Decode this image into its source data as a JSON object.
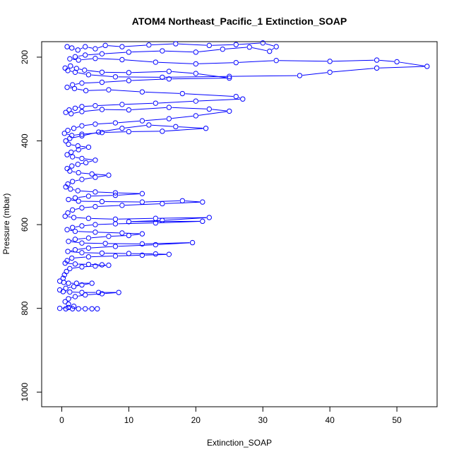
{
  "chart_data": {
    "type": "scatter",
    "title": "ATOM4 Northeast_Pacific_1 Extinction_SOAP",
    "xlabel": "Extinction_SOAP",
    "ylabel": "Pressure (mbar)",
    "xlim": [
      -3,
      56
    ],
    "ylim": [
      1035,
      163
    ],
    "y_reversed": true,
    "x_ticks": [
      0,
      10,
      20,
      30,
      40,
      50
    ],
    "x_tick_labels": [
      "0",
      "10",
      "20",
      "30",
      "40",
      "50"
    ],
    "y_ticks": [
      200,
      400,
      600,
      800,
      1000
    ],
    "y_tick_labels": [
      "200",
      "400",
      "600",
      "800",
      "1000"
    ],
    "grid": false,
    "legend": "none",
    "marker": "open-circle",
    "connected": true,
    "color": "#0000ff",
    "series": [
      {
        "points": [
          [
            0.8,
            175
          ],
          [
            1.5,
            178
          ],
          [
            2.4,
            183
          ],
          [
            3.5,
            175
          ],
          [
            5.0,
            180
          ],
          [
            6.5,
            172
          ],
          [
            9.0,
            175
          ],
          [
            13.0,
            171
          ],
          [
            17.0,
            168
          ],
          [
            22.0,
            172
          ],
          [
            26.0,
            170
          ],
          [
            30.0,
            166
          ],
          [
            32.0,
            175
          ],
          [
            31.0,
            186
          ],
          [
            28.0,
            176
          ],
          [
            24.0,
            181
          ],
          [
            20.0,
            188
          ],
          [
            15.0,
            185
          ],
          [
            10.0,
            188
          ],
          [
            6.0,
            192
          ],
          [
            3.5,
            195
          ],
          [
            2.0,
            199
          ],
          [
            1.2,
            204
          ],
          [
            2.5,
            207
          ],
          [
            5.0,
            203
          ],
          [
            9.0,
            206
          ],
          [
            14.0,
            212
          ],
          [
            20.0,
            216
          ],
          [
            26.0,
            213
          ],
          [
            32.0,
            208
          ],
          [
            40.0,
            210
          ],
          [
            47.0,
            207
          ],
          [
            50.0,
            211
          ],
          [
            54.5,
            222
          ],
          [
            47.0,
            226
          ],
          [
            40.0,
            236
          ],
          [
            35.5,
            244
          ],
          [
            25.0,
            246
          ],
          [
            15.0,
            248
          ],
          [
            8.0,
            247
          ],
          [
            4.0,
            242
          ],
          [
            2.0,
            236
          ],
          [
            0.9,
            232
          ],
          [
            0.5,
            226
          ],
          [
            1.3,
            221
          ],
          [
            2.2,
            227
          ],
          [
            3.4,
            231
          ],
          [
            6.0,
            236
          ],
          [
            10.0,
            237
          ],
          [
            16.0,
            234
          ],
          [
            20.0,
            239
          ],
          [
            25.0,
            250
          ],
          [
            16.0,
            252
          ],
          [
            10.0,
            256
          ],
          [
            6.0,
            260
          ],
          [
            3.0,
            262
          ],
          [
            1.6,
            266
          ],
          [
            0.8,
            272
          ],
          [
            1.9,
            275
          ],
          [
            3.6,
            280
          ],
          [
            7.0,
            278
          ],
          [
            12.0,
            283
          ],
          [
            18.0,
            287
          ],
          [
            26.0,
            294
          ],
          [
            27.0,
            300
          ],
          [
            20.0,
            305
          ],
          [
            14.0,
            310
          ],
          [
            9.0,
            313
          ],
          [
            5.0,
            316
          ],
          [
            3.0,
            318
          ],
          [
            2.0,
            322
          ],
          [
            1.1,
            326
          ],
          [
            0.6,
            332
          ],
          [
            1.4,
            335
          ],
          [
            3.0,
            330
          ],
          [
            6.0,
            325
          ],
          [
            10.0,
            326
          ],
          [
            16.0,
            320
          ],
          [
            22.0,
            324
          ],
          [
            25.0,
            329
          ],
          [
            20.0,
            340
          ],
          [
            16.0,
            347
          ],
          [
            12.0,
            352
          ],
          [
            8.0,
            357
          ],
          [
            5.0,
            360
          ],
          [
            3.0,
            364
          ],
          [
            1.8,
            370
          ],
          [
            0.9,
            375
          ],
          [
            0.4,
            382
          ],
          [
            1.5,
            387
          ],
          [
            3.0,
            384
          ],
          [
            6.0,
            380
          ],
          [
            10.0,
            378
          ],
          [
            15.0,
            377
          ],
          [
            21.5,
            370
          ],
          [
            17.0,
            366
          ],
          [
            13.0,
            362
          ],
          [
            9.0,
            370
          ],
          [
            5.5,
            379
          ],
          [
            3.0,
            388
          ],
          [
            1.2,
            394
          ],
          [
            0.6,
            400
          ],
          [
            1.0,
            408
          ],
          [
            2.4,
            412
          ],
          [
            4.0,
            415
          ],
          [
            2.5,
            421
          ],
          [
            1.4,
            427
          ],
          [
            0.8,
            433
          ],
          [
            1.6,
            438
          ],
          [
            3.0,
            442
          ],
          [
            5.0,
            446
          ],
          [
            3.6,
            452
          ],
          [
            2.4,
            456
          ],
          [
            1.5,
            460
          ],
          [
            0.8,
            466
          ],
          [
            1.2,
            472
          ],
          [
            2.5,
            476
          ],
          [
            4.5,
            479
          ],
          [
            7.0,
            482
          ],
          [
            5.0,
            487
          ],
          [
            3.0,
            492
          ],
          [
            1.6,
            497
          ],
          [
            0.9,
            503
          ],
          [
            0.6,
            510
          ],
          [
            1.3,
            515
          ],
          [
            2.4,
            519
          ],
          [
            5.0,
            522
          ],
          [
            8.0,
            524
          ],
          [
            12.0,
            526
          ],
          [
            8.0,
            530
          ],
          [
            4.0,
            532
          ],
          [
            2.0,
            536
          ],
          [
            1.0,
            540
          ],
          [
            2.5,
            544
          ],
          [
            6.0,
            545
          ],
          [
            12.0,
            546
          ],
          [
            18.0,
            543
          ],
          [
            21.0,
            546
          ],
          [
            15.0,
            550
          ],
          [
            9.0,
            554
          ],
          [
            5.0,
            557
          ],
          [
            3.0,
            560
          ],
          [
            1.6,
            565
          ],
          [
            0.9,
            572
          ],
          [
            0.5,
            580
          ],
          [
            1.8,
            583
          ],
          [
            4.0,
            585
          ],
          [
            8.0,
            587
          ],
          [
            14.0,
            585
          ],
          [
            22.0,
            583
          ],
          [
            15.0,
            590
          ],
          [
            10.0,
            593
          ],
          [
            21.0,
            592
          ],
          [
            14.0,
            596
          ],
          [
            8.0,
            598
          ],
          [
            5.0,
            600
          ],
          [
            3.0,
            603
          ],
          [
            1.6,
            607
          ],
          [
            0.8,
            612
          ],
          [
            2.0,
            616
          ],
          [
            5.0,
            618
          ],
          [
            9.0,
            620
          ],
          [
            12.0,
            622
          ],
          [
            10.0,
            626
          ],
          [
            7.0,
            628
          ],
          [
            4.0,
            632
          ],
          [
            2.0,
            635
          ],
          [
            1.0,
            640
          ],
          [
            3.0,
            644
          ],
          [
            6.5,
            645
          ],
          [
            12.0,
            646
          ],
          [
            19.5,
            643
          ],
          [
            14.0,
            648
          ],
          [
            8.0,
            652
          ],
          [
            4.0,
            656
          ],
          [
            2.0,
            660
          ],
          [
            0.9,
            664
          ],
          [
            3.0,
            667
          ],
          [
            6.0,
            668
          ],
          [
            10.0,
            669
          ],
          [
            14.0,
            670
          ],
          [
            16.0,
            671
          ],
          [
            12.0,
            673
          ],
          [
            8.0,
            675
          ],
          [
            4.0,
            677
          ],
          [
            1.5,
            680
          ],
          [
            0.8,
            686
          ],
          [
            0.5,
            692
          ],
          [
            2.0,
            694
          ],
          [
            4.0,
            695
          ],
          [
            6.0,
            696
          ],
          [
            7.0,
            697
          ],
          [
            5.0,
            699
          ],
          [
            3.0,
            701
          ],
          [
            1.2,
            705
          ],
          [
            0.7,
            712
          ],
          [
            0.4,
            720
          ],
          [
            0.2,
            728
          ],
          [
            -0.3,
            735
          ],
          [
            0.3,
            738
          ],
          [
            1.0,
            740
          ],
          [
            2.2,
            740
          ],
          [
            4.5,
            740
          ],
          [
            3.0,
            744
          ],
          [
            1.8,
            748
          ],
          [
            0.6,
            752
          ],
          [
            -0.3,
            756
          ],
          [
            0.2,
            760
          ],
          [
            1.2,
            761
          ],
          [
            3.0,
            762
          ],
          [
            5.5,
            762
          ],
          [
            8.5,
            762
          ],
          [
            6.0,
            765
          ],
          [
            3.5,
            768
          ],
          [
            2.0,
            772
          ],
          [
            1.0,
            777
          ],
          [
            0.5,
            784
          ],
          [
            1.0,
            790
          ],
          [
            1.8,
            795
          ],
          [
            1.0,
            798
          ],
          [
            -0.3,
            800
          ],
          [
            0.6,
            801
          ],
          [
            1.6,
            801
          ],
          [
            2.5,
            801
          ],
          [
            3.5,
            801
          ],
          [
            4.5,
            801
          ],
          [
            5.3,
            801
          ]
        ]
      }
    ]
  }
}
